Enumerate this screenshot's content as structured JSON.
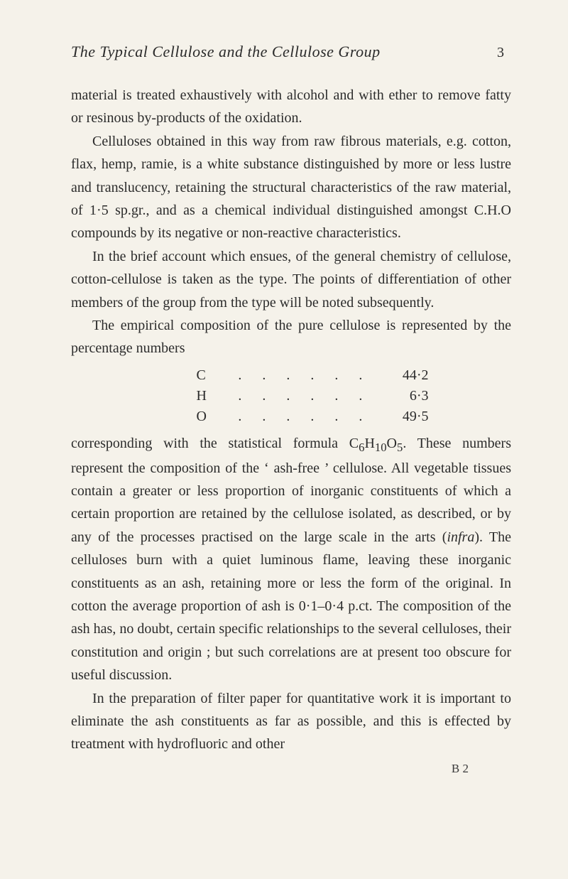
{
  "page": {
    "running_title": "The Typical Cellulose and the Cellulose Group",
    "number": "3"
  },
  "para1": "material is treated exhaustively with alcohol and with ether to remove fatty or resinous by-products of the oxidation.",
  "para2": "Celluloses obtained in this way from raw fibrous materials, e.g. cotton, flax, hemp, ramie, is a white substance distinguished by more or less lustre and translucency, retaining the structural characteristics of the raw material, of 1·5 sp.gr., and as a chemical individual distinguished amongst C.H.O compounds by its negative or non-reactive characteristics.",
  "para3": "In the brief account which ensues, of the general chemistry of cellulose, cotton-cellulose is taken as the type. The points of differentiation of other members of the group from the type will be noted subsequently.",
  "para4": "The empirical composition of the pure cellulose is repre­sented by the percentage numbers",
  "composition": {
    "rows": [
      {
        "element": "C",
        "dots": ". . . . . .",
        "value": "44·2"
      },
      {
        "element": "H",
        "dots": ". . . . . .",
        "value": "6·3"
      },
      {
        "element": "O",
        "dots": ". . . . . .",
        "value": "49·5"
      }
    ]
  },
  "para5a": "corresponding with the statistical formula C",
  "para5_sub1": "6",
  "para5b": "H",
  "para5_sub2": "10",
  "para5c": "O",
  "para5_sub3": "5",
  "para5d": ". These numbers represent the composition of the ‘ ash-free ’ cellulose. All vegetable tissues contain a greater or less proportion of inorganic constituents of which a certain proportion are retained by the cellulose isolated, as described, or by any of the processes practised on the large scale in the arts (",
  "para5_ital": "infra",
  "para5e": "). The celluloses burn with a quiet luminous flame, leaving these inorganic constituents as an ash, retaining more or less the form of the original. In cotton the average proportion of ash is 0·1–0·4 p.ct. The composition of the ash has, no doubt, certain specific relationships to the several celluloses, their constitution and origin ; but such correlations are at present too obscure for useful discussion.",
  "para6": "In the preparation of filter paper for quantitative work it is important to eliminate the ash constituents as far as possible, and this is effected by treatment with hydrofluoric and other",
  "signature": "B 2"
}
